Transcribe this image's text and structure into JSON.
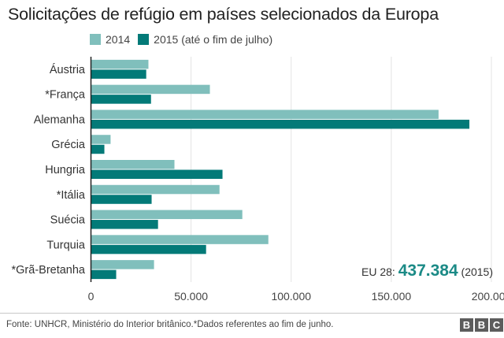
{
  "chart_data": {
    "type": "bar",
    "orientation": "horizontal",
    "title": "Solicitações de refúgio em países selecionados da Europa",
    "categories": [
      "Áustria",
      "*França",
      "Alemanha",
      "Grécia",
      "Hungria",
      "*Itália",
      "Suécia",
      "Turquia",
      "*Grã-Bretanha"
    ],
    "series": [
      {
        "name": "2014",
        "color": "#80bfbc",
        "values": [
          28700,
          59400,
          173600,
          9800,
          41700,
          64200,
          75600,
          88600,
          31500
        ]
      },
      {
        "name": "2015 (até o fim de julho)",
        "color": "#037a78",
        "values": [
          27600,
          30000,
          189000,
          6700,
          65700,
          30300,
          33500,
          57500,
          12600
        ]
      }
    ],
    "xlabel": "",
    "ylabel": "",
    "xlim": [
      0,
      200000
    ],
    "xticks": [
      0,
      50000,
      100000,
      150000,
      200000
    ],
    "xtick_labels": [
      "0",
      "50.000",
      "100.000",
      "150.000",
      "200.000"
    ],
    "grid": true,
    "legend": "top",
    "annotation": {
      "prefix": "EU 28: ",
      "value": "437.384",
      "suffix": " (2015)"
    }
  },
  "footer": {
    "source": "Fonte: UNHCR, Ministério do Interior britânico.*Dados referentes ao fim de junho.",
    "logo": [
      "B",
      "B",
      "C"
    ]
  }
}
